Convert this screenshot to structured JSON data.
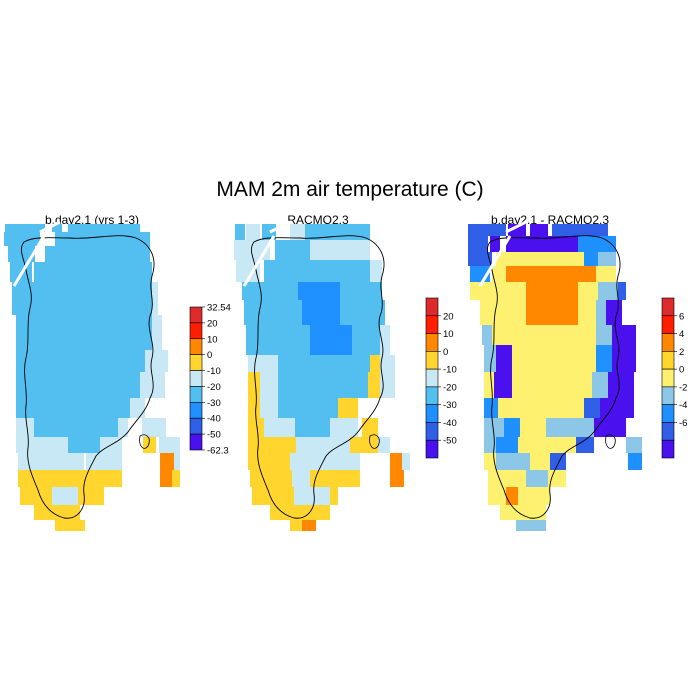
{
  "figure": {
    "title": "MAM 2m air temperature (C)"
  },
  "panels": [
    {
      "title": "b.day2.1 (yrs 1-3)",
      "colorbar": {
        "labels": [
          "32.54",
          "20",
          "10",
          "0",
          "-10",
          "-20",
          "-30",
          "-40",
          "-50",
          "-62.3"
        ],
        "colors": [
          "#dd2a2a",
          "#ff1f00",
          "#ff8800",
          "#ffd52e",
          "#c9e8f6",
          "#52bff0",
          "#1e90ff",
          "#2f5fe6",
          "#4a10ee"
        ]
      }
    },
    {
      "title": "RACMO2.3",
      "colorbar": {
        "labels": [
          "20",
          "10",
          "0",
          "-10",
          "-20",
          "-30",
          "-40",
          "-50"
        ],
        "colors": [
          "#dd2a2a",
          "#ff1f00",
          "#ff8800",
          "#ffd52e",
          "#c9e8f6",
          "#52bff0",
          "#1e90ff",
          "#2f5fe6",
          "#4a10ee"
        ]
      }
    },
    {
      "title": "b.day2.1 - RACMO2.3",
      "colorbar": {
        "labels": [
          "6",
          "4",
          "2",
          "0",
          "-2",
          "-4",
          "-6"
        ],
        "colors": [
          "#dd2a2a",
          "#ff1f00",
          "#ff8800",
          "#ffd52e",
          "#fff170",
          "#8cc7e8",
          "#1e90ff",
          "#2f5fe6",
          "#4a10ee"
        ]
      }
    }
  ]
}
